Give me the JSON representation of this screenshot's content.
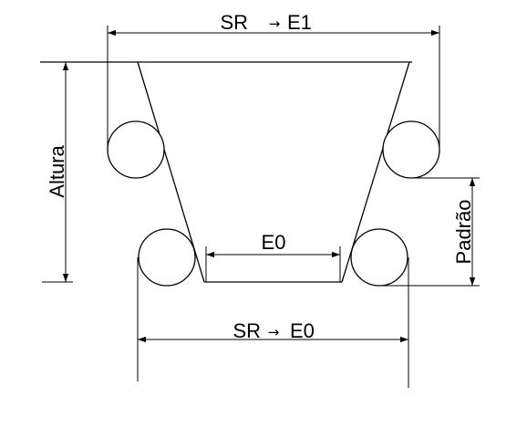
{
  "diagram": {
    "labels": {
      "top_dimension_prefix": "SR",
      "top_dimension_suffix": "E1",
      "bottom_dimension_prefix": "SR",
      "bottom_dimension_suffix": "E0",
      "inner_dimension": "E0",
      "left_dimension": "Altura",
      "right_dimension": "Padrão",
      "arrow_glyph": "→"
    },
    "colors": {
      "stroke": "#000000",
      "background": "#ffffff"
    }
  }
}
